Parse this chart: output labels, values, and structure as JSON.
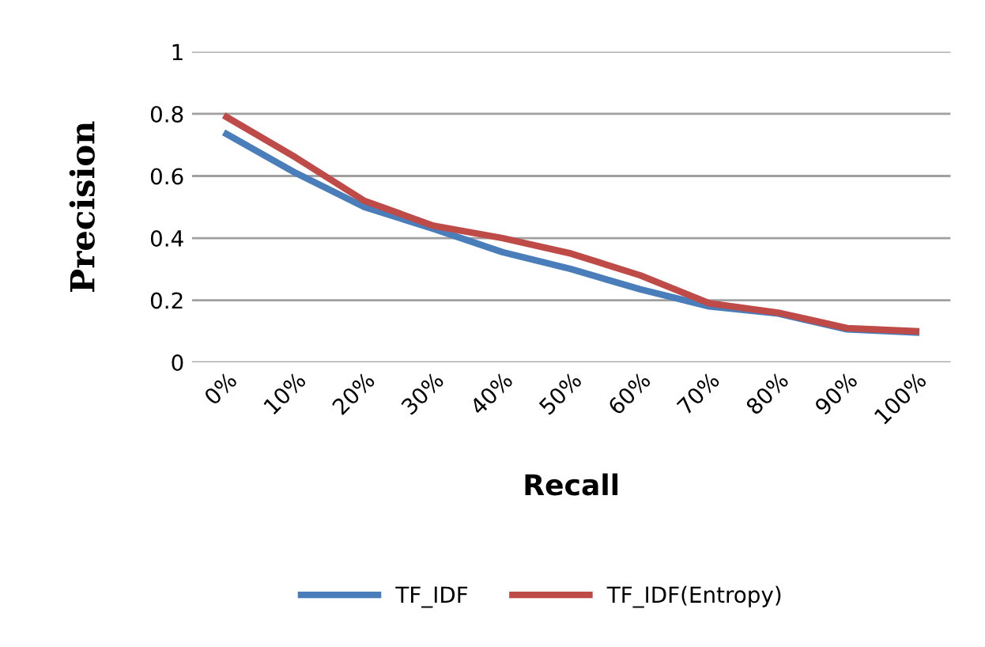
{
  "chart_data": {
    "type": "line",
    "xlabel": "Recall",
    "ylabel": "Precision",
    "categories": [
      "0%",
      "10%",
      "20%",
      "30%",
      "40%",
      "50%",
      "60%",
      "70%",
      "80%",
      "90%",
      "100%"
    ],
    "series": [
      {
        "name": "TF_IDF",
        "color": "#4a7ebb",
        "values": [
          0.735,
          0.61,
          0.5,
          0.43,
          0.355,
          0.3,
          0.235,
          0.18,
          0.157,
          0.106,
          0.096
        ]
      },
      {
        "name": "TF_IDF(Entropy)",
        "color": "#be4b48",
        "values": [
          0.79,
          0.66,
          0.52,
          0.44,
          0.4,
          0.35,
          0.28,
          0.19,
          0.16,
          0.11,
          0.1
        ]
      }
    ],
    "ylim": [
      0,
      1
    ],
    "yticks": [
      0,
      0.2,
      0.4,
      0.6,
      0.8,
      1
    ],
    "grid": "y",
    "legend": "bottom",
    "marker": "none",
    "line_style": "solid"
  }
}
